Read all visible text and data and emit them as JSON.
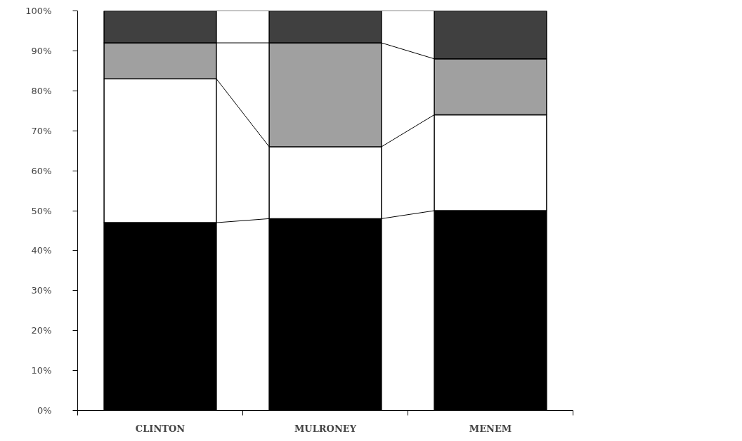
{
  "chart_data": {
    "type": "bar",
    "stacked": true,
    "categories": [
      "CLINTON",
      "MULRONEY",
      "MENEM"
    ],
    "series": [
      {
        "color": "#000000",
        "values": [
          47,
          48,
          50
        ]
      },
      {
        "color": "#ffffff",
        "values": [
          36,
          18,
          24
        ]
      },
      {
        "color": "#a0a0a0",
        "values": [
          9,
          26,
          14
        ]
      },
      {
        "color": "#404040",
        "values": [
          8,
          8,
          12
        ]
      }
    ],
    "ylim": [
      0,
      100
    ],
    "yticks": [
      {
        "value": 0,
        "label": "0%"
      },
      {
        "value": 10,
        "label": "10%"
      },
      {
        "value": 20,
        "label": "20%"
      },
      {
        "value": 30,
        "label": "30%"
      },
      {
        "value": 40,
        "label": "40%"
      },
      {
        "value": 50,
        "label": "50%"
      },
      {
        "value": 60,
        "label": "60%"
      },
      {
        "value": 70,
        "label": "70%"
      },
      {
        "value": 80,
        "label": "80%"
      },
      {
        "value": 90,
        "label": "90%"
      },
      {
        "value": 100,
        "label": "100%"
      }
    ],
    "grid": false
  }
}
